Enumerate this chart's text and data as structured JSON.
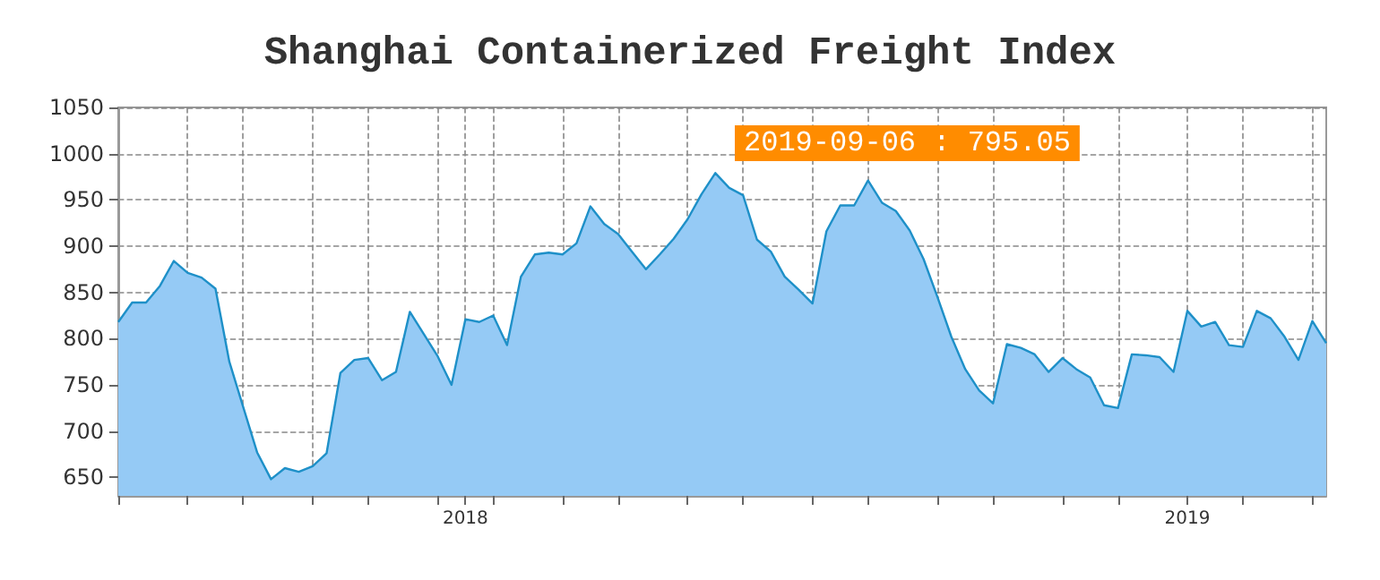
{
  "chart_data": {
    "type": "area",
    "title": "Shanghai Containerized Freight Index",
    "categories": [
      null,
      null,
      null,
      null,
      null,
      null,
      null,
      null,
      null,
      null,
      null,
      null,
      null,
      null,
      null,
      null,
      null,
      null,
      null,
      null,
      null,
      null,
      null,
      null,
      null,
      "2018",
      null,
      null,
      null,
      null,
      null,
      null,
      null,
      null,
      null,
      null,
      null,
      null,
      null,
      null,
      null,
      null,
      null,
      null,
      null,
      null,
      null,
      null,
      null,
      null,
      null,
      null,
      null,
      null,
      null,
      null,
      null,
      null,
      null,
      null,
      null,
      null,
      null,
      null,
      null,
      null,
      null,
      null,
      null,
      null,
      null,
      null,
      null,
      null,
      null,
      null,
      null,
      "2019",
      null,
      null,
      null,
      null,
      null,
      null,
      null,
      null,
      null,
      null
    ],
    "series": [
      {
        "color": "#1e90c8",
        "values": [
          818,
          839,
          839,
          857,
          884,
          871,
          866,
          854,
          775,
          726,
          677,
          648,
          660,
          656,
          662,
          676,
          763,
          777,
          779,
          755,
          764,
          829,
          805,
          781,
          750,
          821,
          818,
          825,
          793,
          867,
          891,
          893,
          891,
          903,
          943,
          924,
          913,
          894,
          875,
          891,
          908,
          929,
          956,
          979,
          963,
          955,
          907,
          894,
          867,
          853,
          838,
          916,
          944,
          944,
          971,
          947,
          938,
          917,
          886,
          845,
          802,
          767,
          744,
          730,
          794,
          790,
          783,
          764,
          779,
          767,
          758,
          728,
          725,
          783,
          782,
          780,
          764,
          830,
          813,
          818,
          793,
          791,
          830,
          822,
          802,
          777,
          819,
          795.05
        ]
      }
    ],
    "ylim": [
      630,
      1050
    ],
    "yticks": [
      650,
      700,
      750,
      800,
      850,
      900,
      950,
      1000,
      1050
    ],
    "grid": true,
    "marker": "none",
    "annotations": [
      "2019-09-06 : 795.05"
    ]
  }
}
